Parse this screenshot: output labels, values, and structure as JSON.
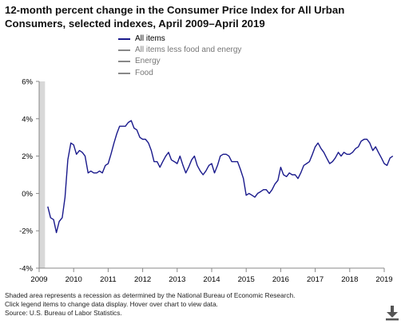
{
  "title": "12-month percent change in the Consumer Price Index for All Urban Consumers, selected indexes, April 2009–April 2019",
  "legend": [
    {
      "label": "All items",
      "color": "#1a1a8c",
      "active": true
    },
    {
      "label": "All items less food and energy",
      "color": "#888888",
      "active": false
    },
    {
      "label": "Energy",
      "color": "#888888",
      "active": false
    },
    {
      "label": "Food",
      "color": "#888888",
      "active": false
    }
  ],
  "footer": {
    "line1": "Shaded area represents a recession as determined by the National Bureau of Economic Research.",
    "line2": "Click legend items to change data display. Hover over chart to view data.",
    "line3": "Source: U.S. Bureau of Labor Statistics."
  },
  "icons": {
    "download": "download-icon"
  },
  "chart_data": {
    "type": "line",
    "title": "12-month percent change in the Consumer Price Index for All Urban Consumers, selected indexes, April 2009–April 2019",
    "xlabel": "",
    "ylabel": "",
    "xlim": [
      2009.0,
      2019.0
    ],
    "ylim": [
      -4,
      6
    ],
    "y_ticks": [
      -4,
      -2,
      0,
      2,
      4,
      6
    ],
    "y_tick_labels": [
      "-4%",
      "-2%",
      "0%",
      "2%",
      "4%",
      "6%"
    ],
    "x_ticks": [
      2009,
      2010,
      2011,
      2012,
      2013,
      2014,
      2015,
      2016,
      2017,
      2018,
      2019
    ],
    "x_tick_labels": [
      "2009",
      "2010",
      "2011",
      "2012",
      "2013",
      "2014",
      "2015",
      "2016",
      "2017",
      "2018",
      "2019"
    ],
    "grid": false,
    "recession": {
      "start": 2009.0,
      "end": 2009.17
    },
    "series": [
      {
        "name": "All items",
        "color": "#1a1a8c",
        "x": [
          2009.25,
          2009.33,
          2009.42,
          2009.5,
          2009.58,
          2009.67,
          2009.75,
          2009.83,
          2009.92,
          2010.0,
          2010.08,
          2010.17,
          2010.25,
          2010.33,
          2010.42,
          2010.5,
          2010.58,
          2010.67,
          2010.75,
          2010.83,
          2010.92,
          2011.0,
          2011.08,
          2011.17,
          2011.25,
          2011.33,
          2011.42,
          2011.5,
          2011.58,
          2011.67,
          2011.75,
          2011.83,
          2011.92,
          2012.0,
          2012.08,
          2012.17,
          2012.25,
          2012.33,
          2012.42,
          2012.5,
          2012.58,
          2012.67,
          2012.75,
          2012.83,
          2012.92,
          2013.0,
          2013.08,
          2013.17,
          2013.25,
          2013.33,
          2013.42,
          2013.5,
          2013.58,
          2013.67,
          2013.75,
          2013.83,
          2013.92,
          2014.0,
          2014.08,
          2014.17,
          2014.25,
          2014.33,
          2014.42,
          2014.5,
          2014.58,
          2014.67,
          2014.75,
          2014.83,
          2014.92,
          2015.0,
          2015.08,
          2015.17,
          2015.25,
          2015.33,
          2015.42,
          2015.5,
          2015.58,
          2015.67,
          2015.75,
          2015.83,
          2015.92,
          2016.0,
          2016.08,
          2016.17,
          2016.25,
          2016.33,
          2016.42,
          2016.5,
          2016.58,
          2016.67,
          2016.75,
          2016.83,
          2016.92,
          2017.0,
          2017.08,
          2017.17,
          2017.25,
          2017.33,
          2017.42,
          2017.5,
          2017.58,
          2017.67,
          2017.75,
          2017.83,
          2017.92,
          2018.0,
          2018.08,
          2018.17,
          2018.25,
          2018.33,
          2018.42,
          2018.5,
          2018.58,
          2018.67,
          2018.75,
          2018.83,
          2018.92,
          2019.0,
          2019.08,
          2019.17,
          2019.25
        ],
        "values": [
          -0.7,
          -1.3,
          -1.4,
          -2.1,
          -1.5,
          -1.3,
          -0.2,
          1.8,
          2.7,
          2.6,
          2.1,
          2.3,
          2.2,
          2.0,
          1.1,
          1.2,
          1.1,
          1.1,
          1.2,
          1.1,
          1.5,
          1.6,
          2.1,
          2.7,
          3.2,
          3.6,
          3.6,
          3.6,
          3.8,
          3.9,
          3.5,
          3.4,
          3.0,
          2.9,
          2.9,
          2.7,
          2.3,
          1.7,
          1.7,
          1.4,
          1.7,
          2.0,
          2.2,
          1.8,
          1.7,
          1.6,
          2.0,
          1.5,
          1.1,
          1.4,
          1.8,
          2.0,
          1.5,
          1.2,
          1.0,
          1.2,
          1.5,
          1.6,
          1.1,
          1.5,
          2.0,
          2.1,
          2.1,
          2.0,
          1.7,
          1.7,
          1.7,
          1.3,
          0.8,
          -0.1,
          0.0,
          -0.1,
          -0.2,
          0.0,
          0.1,
          0.2,
          0.2,
          0.0,
          0.2,
          0.5,
          0.7,
          1.4,
          1.0,
          0.9,
          1.1,
          1.0,
          1.0,
          0.8,
          1.1,
          1.5,
          1.6,
          1.7,
          2.1,
          2.5,
          2.7,
          2.4,
          2.2,
          1.9,
          1.6,
          1.7,
          1.9,
          2.2,
          2.0,
          2.2,
          2.1,
          2.1,
          2.2,
          2.4,
          2.5,
          2.8,
          2.9,
          2.9,
          2.7,
          2.3,
          2.5,
          2.2,
          1.9,
          1.6,
          1.5,
          1.9,
          2.0
        ]
      }
    ]
  }
}
